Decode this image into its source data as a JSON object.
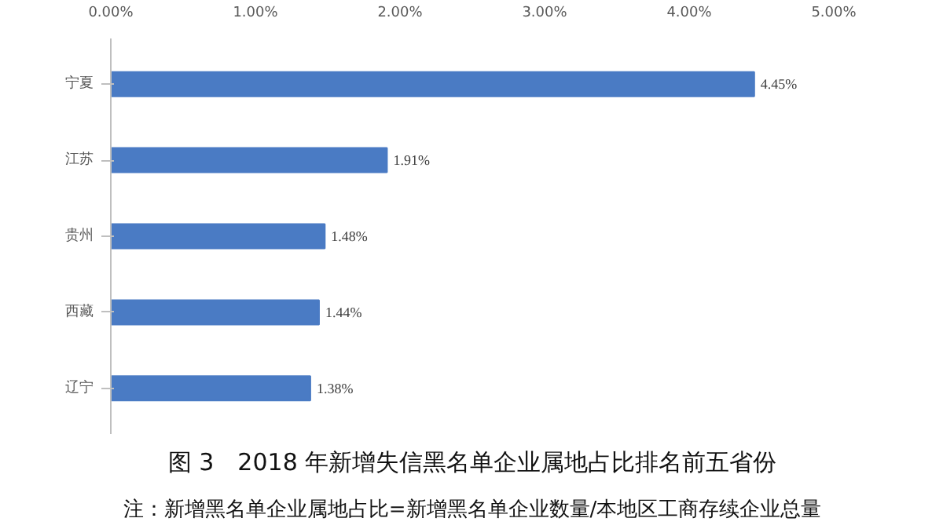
{
  "chart_data": {
    "type": "bar",
    "orientation": "horizontal",
    "title": "图 3　2018 年新增失信黑名单企业属地占比排名前五省份",
    "annotations": [
      "注：新增黑名单企业属地占比=新增黑名单企业数量/本地区工商存续企业总量"
    ],
    "categories": [
      "宁夏",
      "江苏",
      "贵州",
      "西藏",
      "辽宁"
    ],
    "values": [
      4.45,
      1.91,
      1.48,
      1.44,
      1.38
    ],
    "value_labels": [
      "4.45%",
      "1.91%",
      "1.48%",
      "1.44%",
      "1.38%"
    ],
    "color": "#4a7bc4",
    "xlim": [
      0,
      5
    ],
    "xticks": [
      {
        "value": 0,
        "label": "0.00%"
      },
      {
        "value": 1,
        "label": "1.00%"
      },
      {
        "value": 2,
        "label": "2.00%"
      },
      {
        "value": 3,
        "label": "3.00%"
      },
      {
        "value": 4,
        "label": "4.00%"
      },
      {
        "value": 5,
        "label": "5.00%"
      }
    ],
    "grid": false
  }
}
